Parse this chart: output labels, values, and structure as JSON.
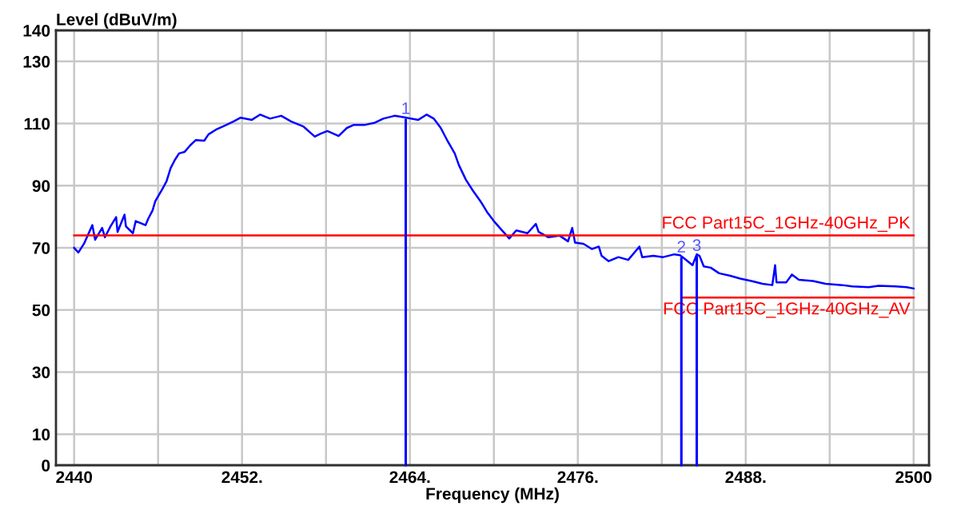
{
  "chart_data": {
    "type": "line",
    "xlabel": "Frequency (MHz)",
    "ylabel": "Level (dBuV/m)",
    "xlim": [
      2438.7,
      2501.1
    ],
    "ylim": [
      0,
      140
    ],
    "xticks": [
      2440,
      {
        "value": 2446,
        "label": null
      },
      {
        "value": 2452,
        "label": "2452."
      },
      {
        "value": 2458,
        "label": null
      },
      {
        "value": 2464,
        "label": "2464."
      },
      {
        "value": 2470,
        "label": null
      },
      {
        "value": 2476,
        "label": "2476."
      },
      {
        "value": 2482,
        "label": null
      },
      {
        "value": 2488,
        "label": "2488."
      },
      {
        "value": 2494,
        "label": null
      },
      2500
    ],
    "yticks": [
      0,
      10,
      30,
      50,
      70,
      90,
      110,
      130,
      140
    ],
    "grid": true,
    "series": [
      {
        "color": "#0000ff",
        "x": [
          2440.0,
          2440.3,
          2440.7,
          2441.3,
          2441.5,
          2442.0,
          2442.2,
          2442.6,
          2443.0,
          2443.1,
          2443.6,
          2443.7,
          2444.2,
          2444.4,
          2445.1,
          2445.3,
          2445.6,
          2445.8,
          2446.3,
          2446.6,
          2446.9,
          2447.2,
          2447.5,
          2447.9,
          2448.3,
          2448.7,
          2449.3,
          2449.6,
          2450.2,
          2450.8,
          2451.4,
          2451.9,
          2452.7,
          2453.3,
          2454.0,
          2454.8,
          2455.5,
          2456.4,
          2457.2,
          2457.6,
          2458.1,
          2458.9,
          2459.5,
          2460.0,
          2460.8,
          2461.5,
          2462.1,
          2462.9,
          2463.6,
          2464.6,
          2465.2,
          2465.7,
          2466.2,
          2466.7,
          2467.2,
          2467.5,
          2468.0,
          2468.5,
          2469.1,
          2469.5,
          2470.0,
          2470.5,
          2471.1,
          2471.6,
          2472.4,
          2473.0,
          2473.2,
          2473.9,
          2474.7,
          2475.3,
          2475.6,
          2475.8,
          2476.4,
          2477.0,
          2477.5,
          2477.7,
          2478.2,
          2478.9,
          2479.6,
          2480.4,
          2480.6,
          2481.4,
          2482.1,
          2482.9,
          2483.3,
          2483.6,
          2484.2,
          2484.5,
          2484.7,
          2485.0,
          2485.5,
          2486.1,
          2486.9,
          2487.6,
          2488.4,
          2489.2,
          2489.9,
          2490.1,
          2490.2,
          2490.9,
          2491.3,
          2491.8,
          2492.8,
          2493.7,
          2494.9,
          2495.6,
          2496.8,
          2497.5,
          2498.7,
          2499.5,
          2500.0
        ],
        "values": [
          70.0,
          68.5,
          71.3,
          77.3,
          72.6,
          76.4,
          73.4,
          76.9,
          79.9,
          75.1,
          80.7,
          76.9,
          74.7,
          78.6,
          77.3,
          79.4,
          82.0,
          85.0,
          88.9,
          91.4,
          95.7,
          98.3,
          100.4,
          100.9,
          103.0,
          104.7,
          104.5,
          106.5,
          108.2,
          109.4,
          110.7,
          111.9,
          111.2,
          112.9,
          111.6,
          112.5,
          110.7,
          109.0,
          105.8,
          106.7,
          107.6,
          106.0,
          108.6,
          109.6,
          109.6,
          110.3,
          111.6,
          112.5,
          112.0,
          111.2,
          112.9,
          111.6,
          108.6,
          104.3,
          100.4,
          96.6,
          91.9,
          88.4,
          84.6,
          81.6,
          78.6,
          76.0,
          73.0,
          75.6,
          74.7,
          77.7,
          75.1,
          73.4,
          73.9,
          72.1,
          76.4,
          71.7,
          71.3,
          69.6,
          70.4,
          67.4,
          65.7,
          67.0,
          66.1,
          70.4,
          67.0,
          67.4,
          67.0,
          67.9,
          67.6,
          66.6,
          64.4,
          67.9,
          67.4,
          64.0,
          63.6,
          61.8,
          61.0,
          60.1,
          59.3,
          58.4,
          58.0,
          64.4,
          58.9,
          58.9,
          61.4,
          59.7,
          59.3,
          58.4,
          58.0,
          57.6,
          57.3,
          57.8,
          57.6,
          57.3,
          56.9
        ]
      },
      {
        "name": "FCC Part15C_1GHz-40GHz_PK",
        "color": "#ff0000",
        "x": [
          2440,
          2500
        ],
        "values": [
          74,
          74
        ]
      },
      {
        "name": "FCC Part15C_1GHz-40GHz_AV",
        "color": "#ff0000",
        "x": [
          2483.5,
          2500
        ],
        "values": [
          54,
          54
        ]
      }
    ],
    "annotations": [
      {
        "text": "1",
        "x": 2463.7,
        "y": 112
      },
      {
        "text": "2",
        "x": 2483.4,
        "y": 67.4
      },
      {
        "text": "3",
        "x": 2484.5,
        "y": 67.9
      }
    ]
  }
}
